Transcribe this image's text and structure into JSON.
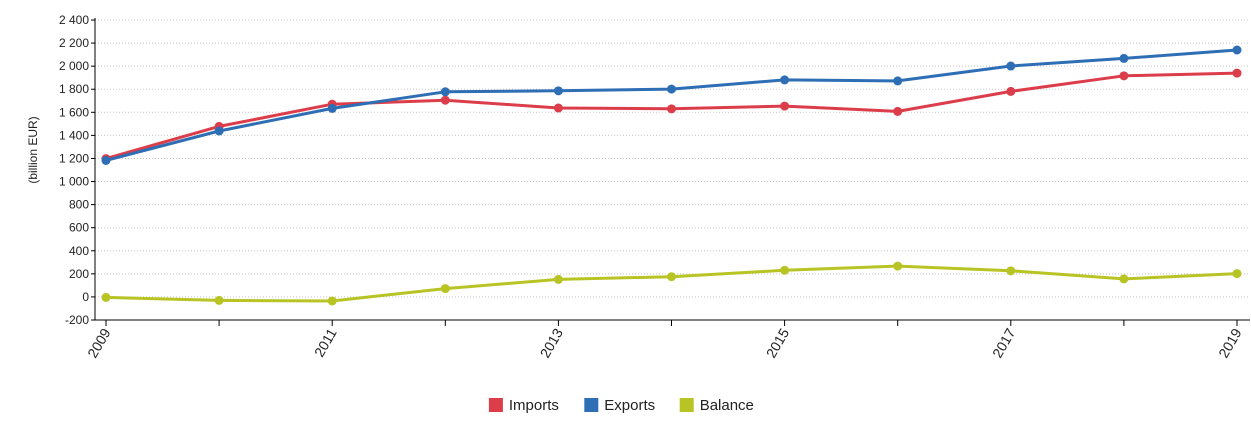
{
  "chart_data": {
    "type": "line",
    "title": "",
    "xlabel": "",
    "ylabel": "(billion EUR)",
    "x": [
      2009,
      2010,
      2011,
      2012,
      2013,
      2014,
      2015,
      2016,
      2017,
      2018,
      2019
    ],
    "x_tick_labels": [
      "2009",
      "2011",
      "2013",
      "2015",
      "2017",
      "2019"
    ],
    "y_tick_labels": [
      "2 400",
      "2 200",
      "2 000",
      "1 800",
      "1 600",
      "1 400",
      "1 200",
      "1 000",
      "800",
      "600",
      "400",
      "200",
      "0",
      "-200"
    ],
    "y_ticks": [
      2400,
      2200,
      2000,
      1800,
      1600,
      1400,
      1200,
      1000,
      800,
      600,
      400,
      200,
      0,
      -200
    ],
    "ylim": [
      -200,
      2400
    ],
    "grid": true,
    "legend_position": "bottom-center",
    "series": [
      {
        "name": "Imports",
        "color": "#dc3d4a",
        "values": [
          1199,
          1478,
          1670,
          1705,
          1637,
          1630,
          1654,
          1608,
          1781,
          1916,
          1940
        ]
      },
      {
        "name": "Exports",
        "color": "#2d6eb5",
        "values": [
          1183,
          1438,
          1634,
          1778,
          1786,
          1801,
          1881,
          1872,
          2001,
          2067,
          2140
        ]
      },
      {
        "name": "Balance",
        "color": "#b8c424",
        "values": [
          -4,
          -30,
          -35,
          72,
          152,
          175,
          231,
          267,
          226,
          156,
          202
        ]
      }
    ]
  }
}
